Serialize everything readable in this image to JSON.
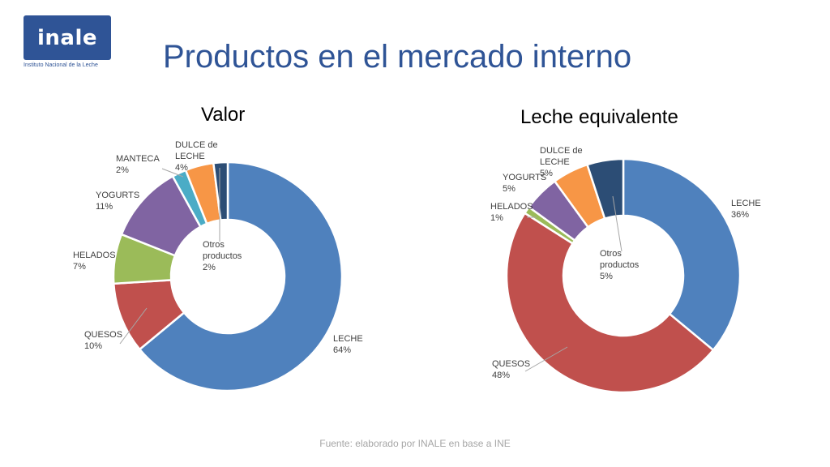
{
  "logo": {
    "text": "inale",
    "subtitle": "Instituto Nacional de la Leche"
  },
  "page": {
    "title": "Productos en el mercado interno",
    "source": "Fuente: elaborado por INALE en base a INE"
  },
  "chart_data": [
    {
      "type": "pie",
      "title": "Valor",
      "slices": [
        {
          "name": "LECHE",
          "label": [
            "LECHE",
            "64%"
          ],
          "value": 64,
          "color": "#4f81bd"
        },
        {
          "name": "QUESOS",
          "label": [
            "QUESOS",
            "10%"
          ],
          "value": 10,
          "color": "#c0504d"
        },
        {
          "name": "HELADOS",
          "label": [
            "HELADOS",
            "7%"
          ],
          "value": 7,
          "color": "#9bbb59"
        },
        {
          "name": "YOGURTS",
          "label": [
            "YOGURTS",
            "11%"
          ],
          "value": 11,
          "color": "#8064a2"
        },
        {
          "name": "MANTECA",
          "label": [
            "MANTECA",
            "2%"
          ],
          "value": 2,
          "color": "#4bacc6"
        },
        {
          "name": "DULCE de LECHE",
          "label": [
            "DULCE de",
            "LECHE",
            "4%"
          ],
          "value": 4,
          "color": "#f79646"
        },
        {
          "name": "Otros productos",
          "label": [
            "Otros",
            "productos",
            "2%"
          ],
          "value": 2,
          "color": "#2c4d75"
        }
      ]
    },
    {
      "type": "pie",
      "title": "Leche equivalente",
      "slices": [
        {
          "name": "LECHE",
          "label": [
            "LECHE",
            "36%"
          ],
          "value": 36,
          "color": "#4f81bd"
        },
        {
          "name": "QUESOS",
          "label": [
            "QUESOS",
            "48%"
          ],
          "value": 48,
          "color": "#c0504d"
        },
        {
          "name": "HELADOS",
          "label": [
            "HELADOS",
            "1%"
          ],
          "value": 1,
          "color": "#9bbb59"
        },
        {
          "name": "YOGURTS",
          "label": [
            "YOGURTS",
            "5%"
          ],
          "value": 5,
          "color": "#8064a2"
        },
        {
          "name": "DULCE de LECHE",
          "label": [
            "DULCE de",
            "LECHE",
            "5%"
          ],
          "value": 5,
          "color": "#f79646"
        },
        {
          "name": "Otros productos",
          "label": [
            "Otros",
            "productos",
            "5%"
          ],
          "value": 5,
          "color": "#2c4d75"
        }
      ]
    }
  ]
}
